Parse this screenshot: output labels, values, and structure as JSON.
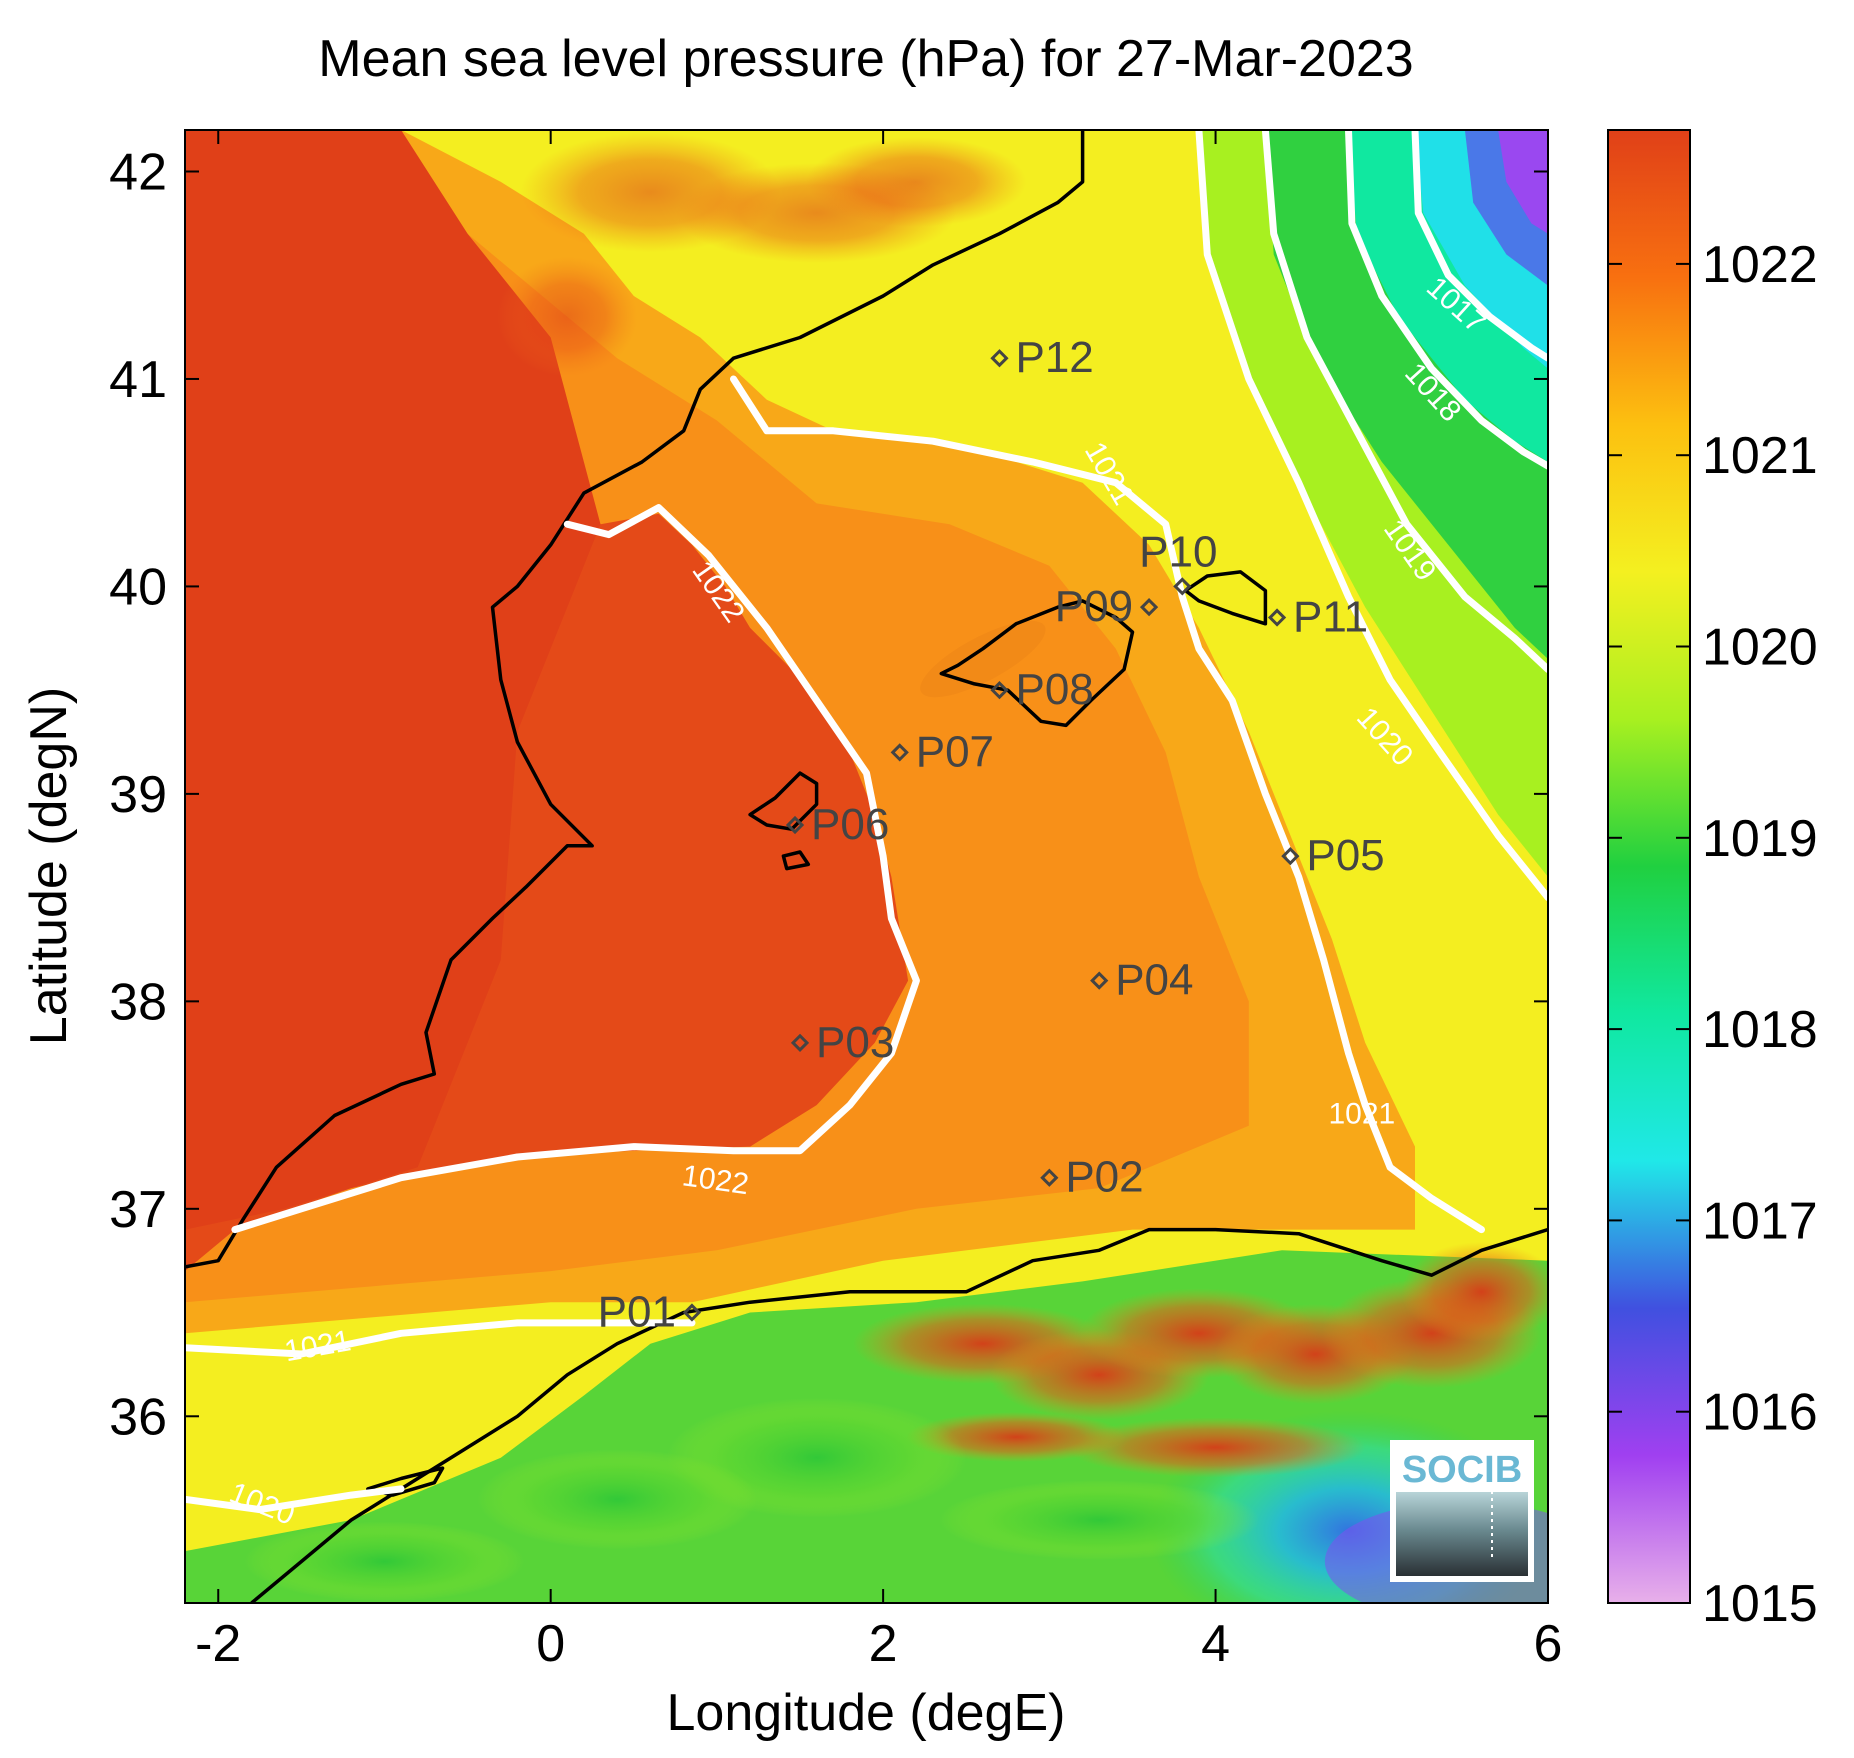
{
  "title": "Mean sea level pressure (hPa) for 27-Mar-2023",
  "chart_data": {
    "type": "heatmap",
    "title": "Mean sea level pressure (hPa) for 27-Mar-2023",
    "xlabel": "Longitude (degE)",
    "ylabel": "Latitude (degN)",
    "xlim": [
      -2.2,
      6.0
    ],
    "ylim": [
      35.1,
      42.2
    ],
    "x_ticks": [
      -2,
      0,
      2,
      4,
      6
    ],
    "x_tick_labels": [
      "-2",
      "0",
      "2",
      "4",
      "6"
    ],
    "y_ticks": [
      36,
      37,
      38,
      39,
      40,
      41,
      42
    ],
    "y_tick_labels": [
      "36",
      "37",
      "38",
      "39",
      "40",
      "41",
      "42"
    ],
    "colorbar": {
      "range": [
        1015,
        1022.7
      ],
      "ticks": [
        1015,
        1016,
        1017,
        1018,
        1019,
        1020,
        1021,
        1022
      ],
      "tick_labels": [
        "1015",
        "1016",
        "1017",
        "1018",
        "1019",
        "1020",
        "1021",
        "1022"
      ],
      "colors": [
        "#e8b0ea",
        "#a040f0",
        "#4050e0",
        "#20e8e8",
        "#10e8a0",
        "#20d040",
        "#a8f020",
        "#f4f020",
        "#fcc010",
        "#f87010",
        "#e04018"
      ]
    },
    "contour_color": "#ffffff",
    "contours": [
      {
        "level": 1017,
        "label": "1017",
        "label_pos": [
          5.44,
          41.35
        ]
      },
      {
        "level": 1018,
        "label": "1018",
        "label_pos": [
          5.3,
          40.93
        ]
      },
      {
        "level": 1019,
        "label": "1019",
        "label_pos": [
          5.16,
          40.17
        ]
      },
      {
        "level": 1020,
        "label": "1020",
        "label_pos": [
          5.01,
          39.27
        ]
      },
      {
        "level": 1020,
        "label": "1020",
        "label_pos": [
          -1.74,
          35.57
        ]
      },
      {
        "level": 1021,
        "label": "1021",
        "label_pos": [
          3.35,
          40.54
        ]
      },
      {
        "level": 1021,
        "label": "1021",
        "label_pos": [
          4.88,
          37.45
        ]
      },
      {
        "level": 1021,
        "label": "1021",
        "label_pos": [
          -1.4,
          36.33
        ]
      },
      {
        "level": 1022,
        "label": "1022",
        "label_pos": [
          1.0,
          39.97
        ]
      },
      {
        "level": 1022,
        "label": "1022",
        "label_pos": [
          0.99,
          37.13
        ]
      }
    ],
    "stations": [
      {
        "name": "P01",
        "lon": 0.85,
        "lat": 36.5,
        "label_side": "left"
      },
      {
        "name": "P02",
        "lon": 3.0,
        "lat": 37.15,
        "label_side": "right"
      },
      {
        "name": "P03",
        "lon": 1.5,
        "lat": 37.8,
        "label_side": "right"
      },
      {
        "name": "P04",
        "lon": 3.3,
        "lat": 38.1,
        "label_side": "right"
      },
      {
        "name": "P05",
        "lon": 4.45,
        "lat": 38.7,
        "label_side": "right"
      },
      {
        "name": "P06",
        "lon": 1.47,
        "lat": 38.85,
        "label_side": "right"
      },
      {
        "name": "P07",
        "lon": 2.1,
        "lat": 39.2,
        "label_side": "right"
      },
      {
        "name": "P08",
        "lon": 2.7,
        "lat": 39.5,
        "label_side": "right"
      },
      {
        "name": "P09",
        "lon": 3.6,
        "lat": 39.9,
        "label_side": "left"
      },
      {
        "name": "P10",
        "lon": 3.8,
        "lat": 40.0,
        "label_side": "above"
      },
      {
        "name": "P11",
        "lon": 4.37,
        "lat": 39.85,
        "label_side": "right"
      },
      {
        "name": "P12",
        "lon": 2.7,
        "lat": 41.1,
        "label_side": "right"
      }
    ],
    "grid": false
  },
  "logo": {
    "text": "SOCIB"
  }
}
